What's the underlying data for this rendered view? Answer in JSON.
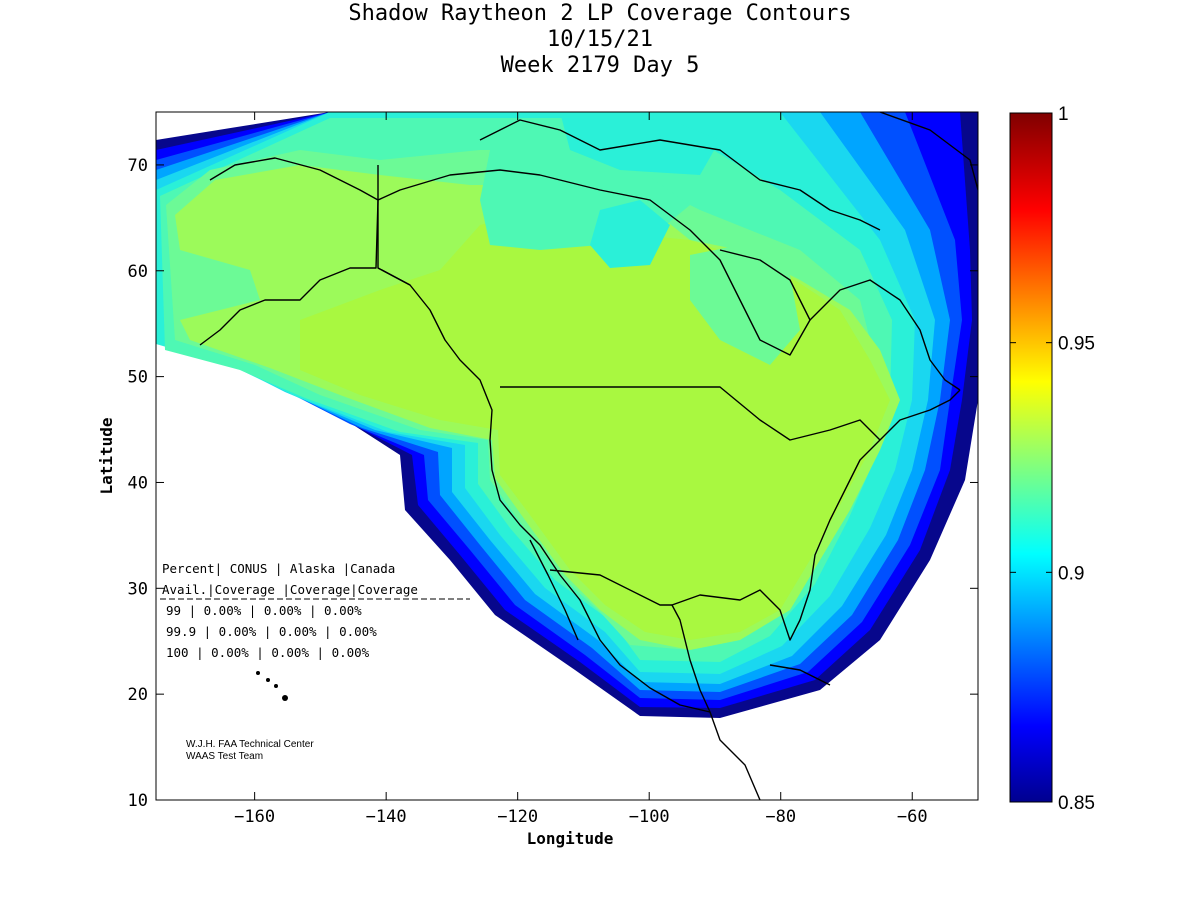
{
  "title": {
    "line1": "Shadow Raytheon 2 LP Coverage Contours",
    "line2": "10/15/21",
    "line3": "Week 2179 Day 5"
  },
  "map": {
    "xlabel": "Longitude",
    "ylabel": "Latitude",
    "xlim": [
      -175,
      -50
    ],
    "ylim": [
      10,
      75
    ],
    "x_ticks": [
      -160,
      -140,
      -120,
      -100,
      -80,
      -60
    ],
    "y_ticks": [
      10,
      20,
      30,
      40,
      50,
      60,
      70
    ],
    "contour_colors": [
      "#07078c",
      "#0000ff",
      "#0050ff",
      "#00a5ff",
      "#1ad7f0",
      "#2af0d8",
      "#4ef8b4",
      "#6cfa96",
      "#9cfa5a",
      "#a9f840"
    ]
  },
  "colorbar": {
    "range": [
      0.85,
      1
    ],
    "tick_values": [
      0.85,
      0.9,
      0.95,
      1
    ],
    "tick_labels": [
      "0.85",
      "0.9",
      "0.95",
      "1"
    ]
  },
  "table": {
    "header1": "Percent| CONUS   | Alaska |Canada",
    "header2": " Avail.|Coverage |Coverage|Coverage",
    "rows": [
      "  99   | 0.00% | 0.00% | 0.00%",
      "  99.9 | 0.00% | 0.00% | 0.00%",
      "  100  | 0.00% | 0.00% | 0.00%"
    ]
  },
  "credit": {
    "line1": "W.J.H. FAA Technical Center",
    "line2": "WAAS Test Team"
  }
}
